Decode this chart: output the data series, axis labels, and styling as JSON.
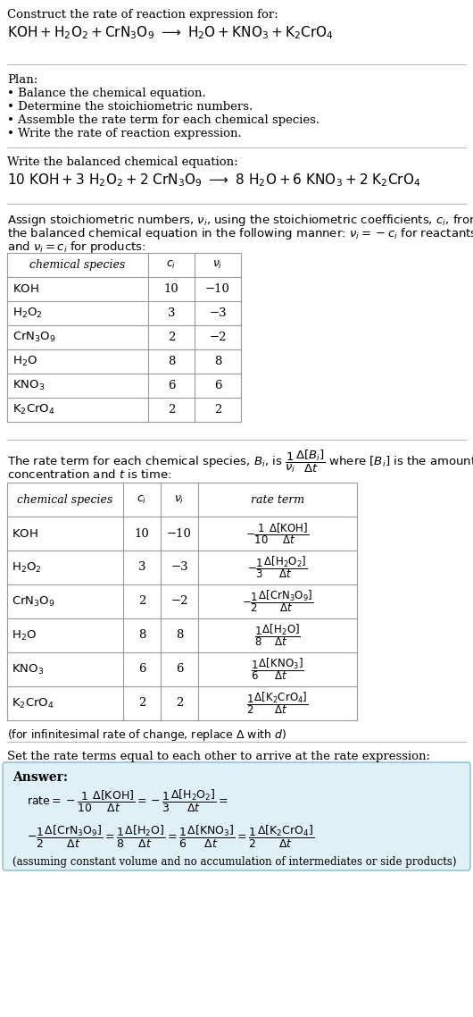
{
  "bg_color": "#ffffff",
  "text_color": "#000000",
  "table_border_color": "#999999",
  "answer_bg_color": "#dff0f7",
  "answer_border_color": "#88bbcc",
  "sections": {
    "title1": "Construct the rate of reaction expression for:",
    "eq1": "KOH + H_2O_2 + CrN_3O_9 \\longrightarrow H_2O + KNO_3 + K_2CrO_4",
    "plan_header": "Plan:",
    "plan_items": [
      "\\bullet Balance the chemical equation.",
      "\\bullet Determine the stoichiometric numbers.",
      "\\bullet Assemble the rate term for each chemical species.",
      "\\bullet Write the rate of reaction expression."
    ],
    "balanced_header": "Write the balanced chemical equation:",
    "eq2": "10 KOH + 3 H_2O_2 + 2 CrN_3O_9 \\longrightarrow 8 H_2O + 6 KNO_3 + 2 K_2CrO_4",
    "assign_text": "Assign stoichiometric numbers, {nu_i}, using the stoichiometric coefficients, {c_i}, from\nthe balanced chemical equation in the following manner: {nu_i} = -{c_i} for reactants\nand {nu_i} = {c_i} for products:",
    "table1_species": [
      "KOH",
      "H_2O_2",
      "CrN_3O_9",
      "H_2O",
      "KNO_3",
      "K_2CrO_4"
    ],
    "table1_ci": [
      "10",
      "3",
      "2",
      "8",
      "6",
      "2"
    ],
    "table1_vi": [
      "-10",
      "-3",
      "-2",
      "8",
      "6",
      "2"
    ],
    "rate_desc": "The rate term for each chemical species, B_i, is (1/nu_i)(Delta[B_i]/Delta t) where [B_i] is the amount\nconcentration and t is time:",
    "table2_species": [
      "KOH",
      "H_2O_2",
      "CrN_3O_9",
      "H_2O",
      "KNO_3",
      "K_2CrO_4"
    ],
    "table2_ci": [
      "10",
      "3",
      "2",
      "8",
      "6",
      "2"
    ],
    "table2_vi": [
      "-10",
      "-3",
      "-2",
      "8",
      "6",
      "2"
    ],
    "table2_rates_neg": [
      true,
      true,
      true,
      false,
      false,
      false
    ],
    "table2_rates_num": [
      "1",
      "1",
      "1",
      "1",
      "1",
      "1"
    ],
    "table2_rates_den": [
      "10",
      "3",
      "2",
      "8",
      "6",
      "2"
    ],
    "table2_rates_species": [
      "KOH",
      "H_2O_2",
      "CrN_3O_9",
      "H_2O",
      "KNO_3",
      "K_2CrO_4"
    ],
    "infinitesimal_note": "(for infinitesimal rate of change, replace \\Delta with d)",
    "set_equal_text": "Set the rate terms equal to each other to arrive at the rate expression:",
    "answer_label": "Answer:",
    "assuming_note": "(assuming constant volume and no accumulation of intermediates or side products)"
  }
}
